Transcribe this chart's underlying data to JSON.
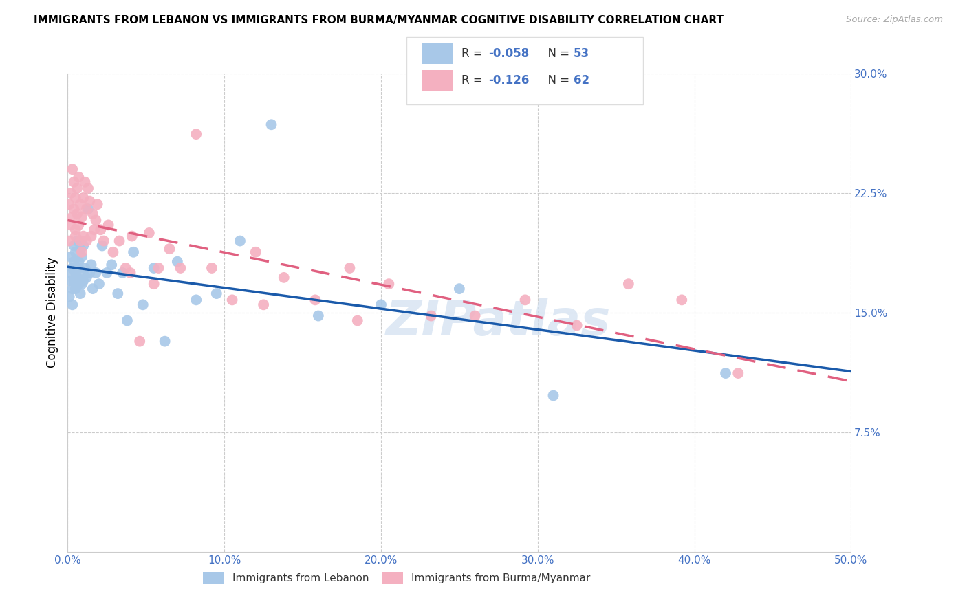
{
  "title": "IMMIGRANTS FROM LEBANON VS IMMIGRANTS FROM BURMA/MYANMAR COGNITIVE DISABILITY CORRELATION CHART",
  "source": "Source: ZipAtlas.com",
  "ylabel": "Cognitive Disability",
  "xlim": [
    0.0,
    0.5
  ],
  "ylim": [
    0.0,
    0.3
  ],
  "yticks": [
    0.075,
    0.15,
    0.225,
    0.3
  ],
  "ytick_labels": [
    "7.5%",
    "15.0%",
    "22.5%",
    "30.0%"
  ],
  "xtick_labels": [
    "0.0%",
    "10.0%",
    "20.0%",
    "30.0%",
    "40.0%",
    "50.0%"
  ],
  "xticks": [
    0.0,
    0.1,
    0.2,
    0.3,
    0.4,
    0.5
  ],
  "legend_labels": [
    "Immigrants from Lebanon",
    "Immigrants from Burma/Myanmar"
  ],
  "R_lebanon": -0.058,
  "N_lebanon": 53,
  "R_burma": -0.126,
  "N_burma": 62,
  "color_lebanon": "#a8c8e8",
  "color_burma": "#f4b0c0",
  "line_color_lebanon": "#1a5aaa",
  "line_color_burma": "#e06080",
  "tick_color": "#4472c4",
  "watermark": "ZIPatlas",
  "legend_text_color": "#4472c4",
  "lebanon_x": [
    0.001,
    0.001,
    0.002,
    0.002,
    0.003,
    0.003,
    0.003,
    0.004,
    0.004,
    0.004,
    0.005,
    0.005,
    0.005,
    0.006,
    0.006,
    0.007,
    0.007,
    0.007,
    0.008,
    0.008,
    0.008,
    0.009,
    0.009,
    0.01,
    0.01,
    0.011,
    0.012,
    0.013,
    0.014,
    0.015,
    0.016,
    0.018,
    0.02,
    0.022,
    0.025,
    0.028,
    0.032,
    0.035,
    0.038,
    0.042,
    0.048,
    0.055,
    0.062,
    0.07,
    0.082,
    0.095,
    0.11,
    0.13,
    0.16,
    0.2,
    0.25,
    0.31,
    0.42
  ],
  "lebanon_y": [
    0.16,
    0.175,
    0.17,
    0.185,
    0.165,
    0.155,
    0.178,
    0.182,
    0.17,
    0.192,
    0.175,
    0.188,
    0.165,
    0.195,
    0.172,
    0.178,
    0.168,
    0.182,
    0.19,
    0.162,
    0.175,
    0.185,
    0.168,
    0.192,
    0.17,
    0.178,
    0.172,
    0.215,
    0.175,
    0.18,
    0.165,
    0.175,
    0.168,
    0.192,
    0.175,
    0.18,
    0.162,
    0.175,
    0.145,
    0.188,
    0.155,
    0.178,
    0.132,
    0.182,
    0.158,
    0.162,
    0.195,
    0.268,
    0.148,
    0.155,
    0.165,
    0.098,
    0.112
  ],
  "burma_x": [
    0.001,
    0.001,
    0.002,
    0.002,
    0.003,
    0.003,
    0.004,
    0.004,
    0.005,
    0.005,
    0.005,
    0.006,
    0.006,
    0.007,
    0.007,
    0.008,
    0.008,
    0.009,
    0.009,
    0.01,
    0.01,
    0.011,
    0.012,
    0.012,
    0.013,
    0.014,
    0.015,
    0.016,
    0.017,
    0.018,
    0.019,
    0.021,
    0.023,
    0.026,
    0.029,
    0.033,
    0.037,
    0.041,
    0.046,
    0.052,
    0.058,
    0.065,
    0.072,
    0.082,
    0.092,
    0.105,
    0.12,
    0.138,
    0.158,
    0.18,
    0.205,
    0.232,
    0.26,
    0.292,
    0.325,
    0.358,
    0.392,
    0.428,
    0.04,
    0.055,
    0.125,
    0.185
  ],
  "burma_y": [
    0.195,
    0.218,
    0.205,
    0.225,
    0.21,
    0.24,
    0.215,
    0.232,
    0.202,
    0.222,
    0.198,
    0.228,
    0.212,
    0.235,
    0.205,
    0.218,
    0.195,
    0.21,
    0.188,
    0.222,
    0.198,
    0.232,
    0.215,
    0.195,
    0.228,
    0.22,
    0.198,
    0.212,
    0.202,
    0.208,
    0.218,
    0.202,
    0.195,
    0.205,
    0.188,
    0.195,
    0.178,
    0.198,
    0.132,
    0.2,
    0.178,
    0.19,
    0.178,
    0.262,
    0.178,
    0.158,
    0.188,
    0.172,
    0.158,
    0.178,
    0.168,
    0.148,
    0.148,
    0.158,
    0.142,
    0.168,
    0.158,
    0.112,
    0.175,
    0.168,
    0.155,
    0.145
  ]
}
